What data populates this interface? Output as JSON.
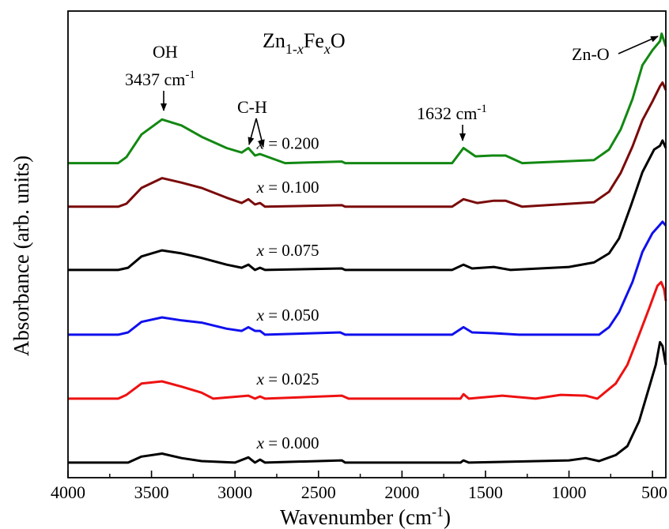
{
  "chart_data": {
    "type": "line",
    "title": "Zn1-xFexO",
    "title_parts": {
      "base1": "Zn",
      "sub1": "1-",
      "subvar": "x",
      "base2": "Fe",
      "subvar2": "x",
      "base3": "O"
    },
    "xlabel": "Wavenumber (cm",
    "xlabel_sup": "-1",
    "xlabel_end": ")",
    "ylabel": "Absorbance (arb. units)",
    "xlim": [
      4000,
      420
    ],
    "x_reversed": true,
    "x_ticks": [
      4000,
      3500,
      3000,
      2500,
      2000,
      1500,
      1000,
      500
    ],
    "y_ticks_shown": false,
    "grid": false,
    "legend": "inline labels",
    "series": [
      {
        "name": "x = 0.000",
        "label_var": "x",
        "label_val": " = 0.000",
        "color": "#000000",
        "baseline": 0.0,
        "points": [
          [
            4000,
            0.0
          ],
          [
            3700,
            0.0
          ],
          [
            3640,
            0.0
          ],
          [
            3560,
            0.08
          ],
          [
            3437,
            0.12
          ],
          [
            3320,
            0.06
          ],
          [
            3200,
            0.02
          ],
          [
            3000,
            0.0
          ],
          [
            2920,
            0.07
          ],
          [
            2880,
            0.0
          ],
          [
            2850,
            0.04
          ],
          [
            2820,
            0.0
          ],
          [
            2360,
            0.03
          ],
          [
            2340,
            0.0
          ],
          [
            1650,
            0.0
          ],
          [
            1632,
            0.03
          ],
          [
            1600,
            0.0
          ],
          [
            1000,
            0.03
          ],
          [
            900,
            0.06
          ],
          [
            820,
            0.02
          ],
          [
            720,
            0.1
          ],
          [
            650,
            0.22
          ],
          [
            580,
            0.55
          ],
          [
            520,
            1.0
          ],
          [
            480,
            1.3
          ],
          [
            455,
            1.6
          ],
          [
            440,
            1.55
          ],
          [
            420,
            1.3
          ]
        ]
      },
      {
        "name": "x = 0.025",
        "label_var": "x",
        "label_val": " = 0.025",
        "color": "#ee1111",
        "baseline": 0.85,
        "points": [
          [
            4000,
            0.0
          ],
          [
            3700,
            0.0
          ],
          [
            3650,
            0.05
          ],
          [
            3560,
            0.2
          ],
          [
            3437,
            0.23
          ],
          [
            3320,
            0.16
          ],
          [
            3200,
            0.08
          ],
          [
            3130,
            0.0
          ],
          [
            2920,
            0.04
          ],
          [
            2880,
            0.0
          ],
          [
            2850,
            0.03
          ],
          [
            2820,
            0.0
          ],
          [
            2360,
            0.04
          ],
          [
            2320,
            0.0
          ],
          [
            1650,
            0.0
          ],
          [
            1632,
            0.06
          ],
          [
            1600,
            0.0
          ],
          [
            1400,
            0.04
          ],
          [
            1200,
            0.0
          ],
          [
            1050,
            0.05
          ],
          [
            900,
            0.04
          ],
          [
            830,
            0.0
          ],
          [
            720,
            0.2
          ],
          [
            650,
            0.45
          ],
          [
            580,
            0.85
          ],
          [
            520,
            1.2
          ],
          [
            470,
            1.5
          ],
          [
            448,
            1.55
          ],
          [
            430,
            1.45
          ],
          [
            420,
            1.3
          ]
        ]
      },
      {
        "name": "x = 0.050",
        "label_var": "x",
        "label_val": " = 0.050",
        "color": "#1010ee",
        "baseline": 1.7,
        "points": [
          [
            4000,
            0.0
          ],
          [
            3700,
            0.0
          ],
          [
            3640,
            0.03
          ],
          [
            3560,
            0.17
          ],
          [
            3437,
            0.23
          ],
          [
            3320,
            0.19
          ],
          [
            3200,
            0.16
          ],
          [
            3050,
            0.08
          ],
          [
            2960,
            0.05
          ],
          [
            2920,
            0.1
          ],
          [
            2880,
            0.05
          ],
          [
            2850,
            0.05
          ],
          [
            2820,
            0.0
          ],
          [
            2370,
            0.03
          ],
          [
            2340,
            0.0
          ],
          [
            1700,
            0.0
          ],
          [
            1632,
            0.1
          ],
          [
            1580,
            0.03
          ],
          [
            1450,
            0.02
          ],
          [
            1300,
            0.0
          ],
          [
            820,
            0.0
          ],
          [
            760,
            0.1
          ],
          [
            700,
            0.3
          ],
          [
            620,
            0.7
          ],
          [
            560,
            1.1
          ],
          [
            500,
            1.35
          ],
          [
            460,
            1.45
          ],
          [
            440,
            1.5
          ],
          [
            420,
            1.45
          ]
        ]
      },
      {
        "name": "x = 0.075",
        "label_var": "x",
        "label_val": " = 0.075",
        "color": "#000000",
        "baseline": 2.56,
        "points": [
          [
            4000,
            0.0
          ],
          [
            3700,
            0.0
          ],
          [
            3640,
            0.03
          ],
          [
            3560,
            0.18
          ],
          [
            3437,
            0.26
          ],
          [
            3320,
            0.22
          ],
          [
            3200,
            0.16
          ],
          [
            3050,
            0.07
          ],
          [
            2960,
            0.03
          ],
          [
            2920,
            0.07
          ],
          [
            2880,
            0.0
          ],
          [
            2850,
            0.03
          ],
          [
            2820,
            0.0
          ],
          [
            2360,
            0.02
          ],
          [
            2340,
            0.0
          ],
          [
            1700,
            0.0
          ],
          [
            1632,
            0.07
          ],
          [
            1580,
            0.02
          ],
          [
            1450,
            0.04
          ],
          [
            1350,
            0.0
          ],
          [
            1000,
            0.04
          ],
          [
            850,
            0.1
          ],
          [
            760,
            0.22
          ],
          [
            700,
            0.42
          ],
          [
            630,
            0.85
          ],
          [
            560,
            1.3
          ],
          [
            490,
            1.6
          ],
          [
            455,
            1.65
          ],
          [
            440,
            1.72
          ],
          [
            420,
            1.62
          ]
        ]
      },
      {
        "name": "x = 0.100",
        "label_var": "x",
        "label_val": " = 0.100",
        "color": "#7a0a0a",
        "baseline": 3.4,
        "points": [
          [
            4000,
            0.0
          ],
          [
            3700,
            0.0
          ],
          [
            3650,
            0.04
          ],
          [
            3560,
            0.25
          ],
          [
            3437,
            0.38
          ],
          [
            3320,
            0.32
          ],
          [
            3200,
            0.25
          ],
          [
            3050,
            0.12
          ],
          [
            2960,
            0.05
          ],
          [
            2920,
            0.1
          ],
          [
            2880,
            0.03
          ],
          [
            2850,
            0.05
          ],
          [
            2820,
            0.0
          ],
          [
            2360,
            0.02
          ],
          [
            2340,
            0.0
          ],
          [
            1700,
            0.0
          ],
          [
            1632,
            0.1
          ],
          [
            1550,
            0.05
          ],
          [
            1450,
            0.08
          ],
          [
            1380,
            0.08
          ],
          [
            1280,
            0.0
          ],
          [
            850,
            0.06
          ],
          [
            760,
            0.2
          ],
          [
            690,
            0.45
          ],
          [
            620,
            0.8
          ],
          [
            560,
            1.15
          ],
          [
            500,
            1.4
          ],
          [
            455,
            1.6
          ],
          [
            440,
            1.65
          ],
          [
            420,
            1.55
          ]
        ]
      },
      {
        "name": "x = 0.200",
        "label_var": "x",
        "label_val": " = 0.200",
        "color": "#128812",
        "baseline": 3.98,
        "points": [
          [
            4000,
            0.0
          ],
          [
            3700,
            0.0
          ],
          [
            3650,
            0.08
          ],
          [
            3560,
            0.38
          ],
          [
            3437,
            0.58
          ],
          [
            3320,
            0.5
          ],
          [
            3200,
            0.35
          ],
          [
            3050,
            0.2
          ],
          [
            2960,
            0.14
          ],
          [
            2920,
            0.2
          ],
          [
            2880,
            0.1
          ],
          [
            2850,
            0.12
          ],
          [
            2700,
            0.0
          ],
          [
            2360,
            0.02
          ],
          [
            2340,
            0.0
          ],
          [
            1700,
            0.0
          ],
          [
            1632,
            0.2
          ],
          [
            1560,
            0.09
          ],
          [
            1460,
            0.1
          ],
          [
            1380,
            0.1
          ],
          [
            1280,
            0.0
          ],
          [
            850,
            0.04
          ],
          [
            760,
            0.18
          ],
          [
            690,
            0.45
          ],
          [
            620,
            0.85
          ],
          [
            560,
            1.3
          ],
          [
            500,
            1.5
          ],
          [
            455,
            1.62
          ],
          [
            445,
            1.72
          ],
          [
            420,
            1.55
          ]
        ]
      }
    ],
    "annotations": [
      {
        "text": "OH",
        "kind": "plain"
      },
      {
        "text": "3437 cm",
        "sup": "-1",
        "kind": "arrow"
      },
      {
        "text": "C-H",
        "kind": "double-arrow"
      },
      {
        "text": "1632 cm",
        "sup": "-1",
        "kind": "arrow"
      },
      {
        "text": "Zn-O",
        "kind": "arrow"
      }
    ],
    "y_range_units": [
      -0.2,
      6.0
    ]
  }
}
